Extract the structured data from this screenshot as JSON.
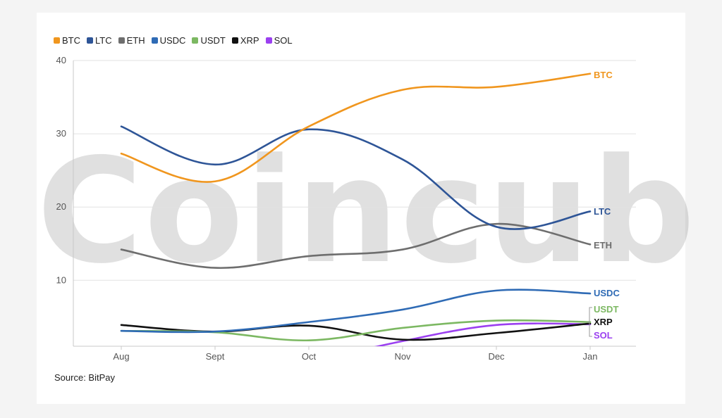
{
  "source_text": "Source: BitPay",
  "watermark_text": "Coincub",
  "chart_data": {
    "type": "line",
    "categories": [
      "Aug",
      "Sept",
      "Oct",
      "Nov",
      "Dec",
      "Jan"
    ],
    "ylim": [
      1,
      40
    ],
    "yticks": [
      10,
      20,
      30,
      40
    ],
    "grid": true,
    "legend_position": "top-left",
    "end_labels": true,
    "series": [
      {
        "name": "BTC",
        "color": "#f0961e",
        "values": [
          27.3,
          23.5,
          31.0,
          36.0,
          36.4,
          38.2
        ]
      },
      {
        "name": "LTC",
        "color": "#2e5597",
        "values": [
          31.0,
          25.8,
          30.6,
          26.5,
          17.3,
          19.4
        ]
      },
      {
        "name": "ETH",
        "color": "#6e6e6e",
        "values": [
          14.2,
          11.7,
          13.3,
          14.2,
          17.7,
          14.9
        ]
      },
      {
        "name": "USDC",
        "color": "#2f6bb5",
        "values": [
          3.1,
          3.0,
          4.3,
          6.0,
          8.6,
          8.2
        ]
      },
      {
        "name": "USDT",
        "color": "#7cb862",
        "values": [
          3.1,
          2.9,
          1.8,
          3.5,
          4.5,
          4.3
        ]
      },
      {
        "name": "XRP",
        "color": "#111111",
        "values": [
          3.9,
          3.0,
          3.8,
          1.9,
          2.8,
          4.1
        ]
      },
      {
        "name": "SOL",
        "color": "#9b40f0",
        "values": [
          null,
          null,
          -1.2,
          1.7,
          3.9,
          4.0
        ]
      }
    ]
  }
}
